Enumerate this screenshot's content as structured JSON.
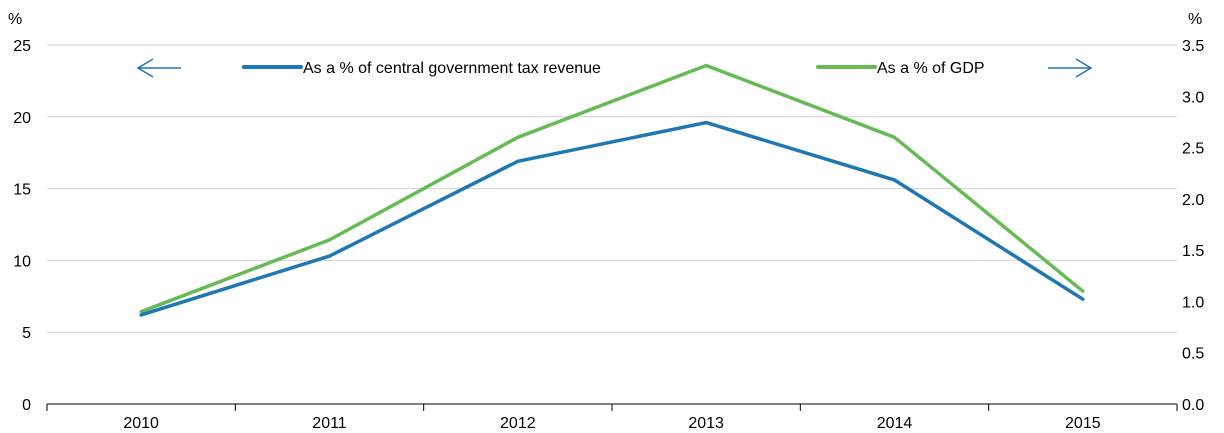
{
  "chart_data": {
    "type": "line",
    "categories": [
      "2010",
      "2011",
      "2012",
      "2013",
      "2014",
      "2015"
    ],
    "series": [
      {
        "name": "As a % of central government tax revenue",
        "axis": "left",
        "color": "#1f77b4",
        "values": [
          6.2,
          10.3,
          16.9,
          19.6,
          15.6,
          7.3
        ]
      },
      {
        "name": "As a % of GDP",
        "axis": "right",
        "color": "#66bb55",
        "values": [
          0.9,
          1.6,
          2.6,
          3.3,
          2.6,
          1.1
        ]
      }
    ],
    "left_axis": {
      "unit": "%",
      "ylim": [
        0,
        25
      ],
      "ticks": [
        "0",
        "5",
        "10",
        "15",
        "20",
        "25"
      ]
    },
    "right_axis": {
      "unit": "%",
      "ylim": [
        0,
        3.5
      ],
      "ticks": [
        "0.0",
        "0.5",
        "1.0",
        "1.5",
        "2.0",
        "2.5",
        "3.0",
        "3.5"
      ]
    },
    "grid": true,
    "legend_placement": "top",
    "arrow_icons": {
      "left": "arrow-left-icon",
      "right": "arrow-right-icon",
      "color": "#1f77b4"
    },
    "gridline_color": "#d0d0d0"
  }
}
